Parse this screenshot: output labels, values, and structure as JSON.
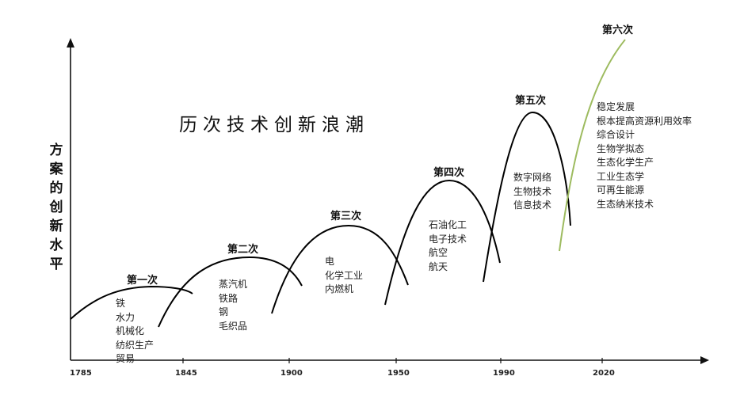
{
  "title": "历次技术创新浪潮",
  "y_axis_label": "方案的创新水平",
  "x_ticks": [
    "1785",
    "1845",
    "1900",
    "1950",
    "1990",
    "2020"
  ],
  "waves": [
    {
      "title": "第一次",
      "items": [
        "铁",
        "水力",
        "机械化",
        "纺织生产",
        "贸易"
      ]
    },
    {
      "title": "第二次",
      "items": [
        "蒸汽机",
        "铁路",
        "钢",
        "毛织品"
      ]
    },
    {
      "title": "第三次",
      "items": [
        "电",
        "化学工业",
        "内燃机"
      ]
    },
    {
      "title": "第四次",
      "items": [
        "石油化工",
        "电子技术",
        "航空",
        "航天"
      ]
    },
    {
      "title": "第五次",
      "items": [
        "数字网络",
        "生物技术",
        "信息技术"
      ]
    },
    {
      "title": "第六次",
      "items": [
        "稳定发展",
        "根本提高资源利用效率",
        "综合设计",
        "生物学拟态",
        "生态化学生产",
        "工业生态学",
        "可再生能源",
        "生态纳米技术"
      ]
    }
  ],
  "colors": {
    "curve": "#000000",
    "sixth_curve": "#9dbb5f",
    "axis": "#111111"
  }
}
